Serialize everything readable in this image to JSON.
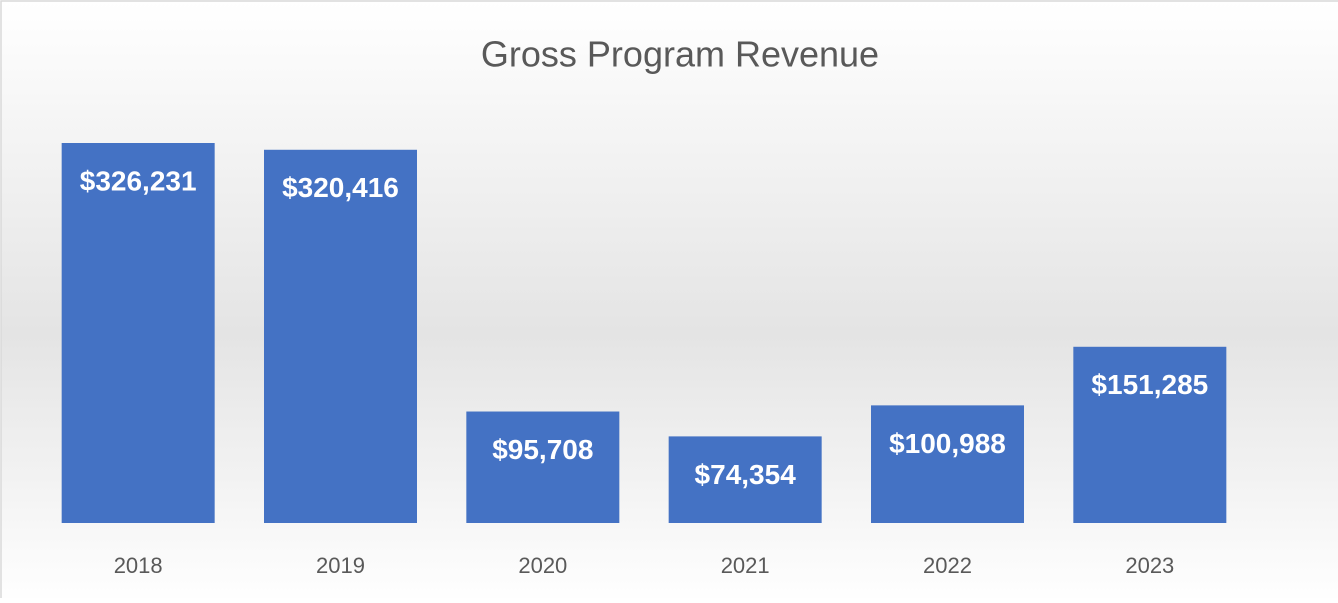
{
  "chart_data": {
    "type": "bar",
    "title": "Gross Program Revenue",
    "categories": [
      "2018",
      "2019",
      "2020",
      "2021",
      "2022",
      "2023"
    ],
    "values": [
      326231,
      320416,
      95708,
      74354,
      100988,
      151285
    ],
    "value_labels": [
      "$326,231",
      "$320,416",
      "$95,708",
      "$74,354",
      "$100,988",
      "$151,285"
    ],
    "color": "#4472c4"
  }
}
